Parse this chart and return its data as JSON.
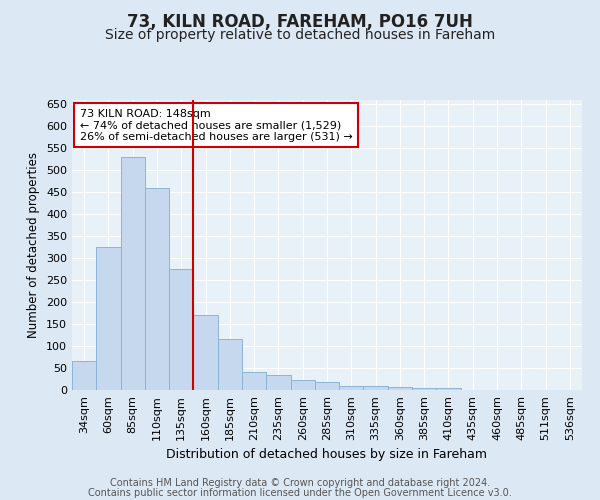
{
  "title1": "73, KILN ROAD, FAREHAM, PO16 7UH",
  "title2": "Size of property relative to detached houses in Fareham",
  "xlabel": "Distribution of detached houses by size in Fareham",
  "ylabel": "Number of detached properties",
  "categories": [
    "34sqm",
    "60sqm",
    "85sqm",
    "110sqm",
    "135sqm",
    "160sqm",
    "185sqm",
    "210sqm",
    "235sqm",
    "260sqm",
    "285sqm",
    "310sqm",
    "335sqm",
    "360sqm",
    "385sqm",
    "410sqm",
    "435sqm",
    "460sqm",
    "485sqm",
    "511sqm",
    "536sqm"
  ],
  "values": [
    65,
    325,
    530,
    460,
    275,
    170,
    115,
    42,
    35,
    22,
    18,
    10,
    8,
    7,
    5,
    5,
    1,
    1,
    1,
    1,
    1
  ],
  "bar_color": "#c5d8ed",
  "bar_edge_color": "#8bb4d4",
  "vline_x": 4.5,
  "vline_color": "#cc0000",
  "annotation_text": "73 KILN ROAD: 148sqm\n← 74% of detached houses are smaller (1,529)\n26% of semi-detached houses are larger (531) →",
  "annotation_box_color": "#ffffff",
  "annotation_box_edge": "#cc0000",
  "ylim": [
    0,
    660
  ],
  "yticks": [
    0,
    50,
    100,
    150,
    200,
    250,
    300,
    350,
    400,
    450,
    500,
    550,
    600,
    650
  ],
  "bg_color": "#dde8f5",
  "plot_bg_color": "#e8f0f8",
  "footer1": "Contains HM Land Registry data © Crown copyright and database right 2024.",
  "footer2": "Contains public sector information licensed under the Open Government Licence v3.0.",
  "title1_fontsize": 12,
  "title2_fontsize": 10,
  "xlabel_fontsize": 9,
  "ylabel_fontsize": 8.5,
  "tick_fontsize": 8,
  "annot_fontsize": 8,
  "footer_fontsize": 7
}
